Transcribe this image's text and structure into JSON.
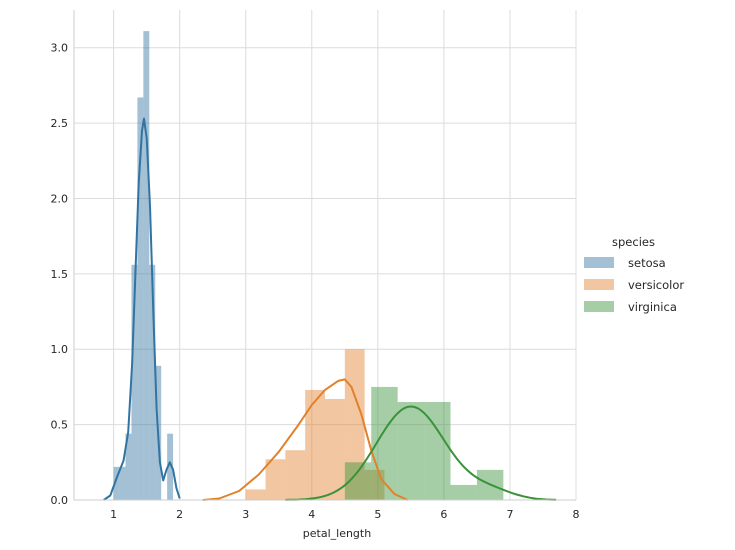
{
  "chart_data": {
    "type": "histogram-kde",
    "xlabel": "petal_length",
    "ylabel": "",
    "xlim": [
      0.4,
      8.0
    ],
    "ylim": [
      0,
      3.25
    ],
    "x_ticks": [
      1,
      2,
      3,
      4,
      5,
      6,
      7,
      8
    ],
    "y_ticks": [
      0.0,
      0.5,
      1.0,
      1.5,
      2.0,
      2.5,
      3.0
    ],
    "x_tick_labels": [
      "1",
      "2",
      "3",
      "4",
      "5",
      "6",
      "7",
      "8"
    ],
    "y_tick_labels": [
      "0.0",
      "0.5",
      "1.0",
      "1.5",
      "2.0",
      "2.5",
      "3.0"
    ],
    "grid": true,
    "legend": {
      "title": "species",
      "placement": "right"
    },
    "series": [
      {
        "name": "setosa",
        "color": "#3274a1",
        "fill_color": "#a3c2dc",
        "histogram": [
          {
            "x0": 1.0,
            "x1": 1.09,
            "value": 0.22
          },
          {
            "x0": 1.09,
            "x1": 1.18,
            "value": 0.22
          },
          {
            "x0": 1.18,
            "x1": 1.27,
            "value": 0.44
          },
          {
            "x0": 1.27,
            "x1": 1.36,
            "value": 1.56
          },
          {
            "x0": 1.36,
            "x1": 1.45,
            "value": 2.67
          },
          {
            "x0": 1.45,
            "x1": 1.54,
            "value": 3.11
          },
          {
            "x0": 1.54,
            "x1": 1.63,
            "value": 1.56
          },
          {
            "x0": 1.63,
            "x1": 1.72,
            "value": 0.89
          },
          {
            "x0": 1.72,
            "x1": 1.81,
            "value": 0.0
          },
          {
            "x0": 1.81,
            "x1": 1.9,
            "value": 0.44
          }
        ],
        "kde": [
          [
            0.85,
            0.0
          ],
          [
            0.95,
            0.03
          ],
          [
            1.05,
            0.15
          ],
          [
            1.15,
            0.26
          ],
          [
            1.22,
            0.45
          ],
          [
            1.28,
            0.9
          ],
          [
            1.33,
            1.5
          ],
          [
            1.38,
            2.1
          ],
          [
            1.43,
            2.45
          ],
          [
            1.46,
            2.53
          ],
          [
            1.5,
            2.4
          ],
          [
            1.55,
            1.95
          ],
          [
            1.6,
            1.25
          ],
          [
            1.65,
            0.6
          ],
          [
            1.7,
            0.25
          ],
          [
            1.75,
            0.13
          ],
          [
            1.8,
            0.2
          ],
          [
            1.85,
            0.25
          ],
          [
            1.9,
            0.2
          ],
          [
            1.95,
            0.08
          ],
          [
            2.0,
            0.01
          ]
        ]
      },
      {
        "name": "versicolor",
        "color": "#e1812c",
        "fill_color": "#f8c39c",
        "histogram": [
          {
            "x0": 3.0,
            "x1": 3.3,
            "value": 0.07
          },
          {
            "x0": 3.3,
            "x1": 3.6,
            "value": 0.27
          },
          {
            "x0": 3.6,
            "x1": 3.9,
            "value": 0.33
          },
          {
            "x0": 3.9,
            "x1": 4.2,
            "value": 0.73
          },
          {
            "x0": 4.2,
            "x1": 4.5,
            "value": 0.67
          },
          {
            "x0": 4.5,
            "x1": 4.8,
            "value": 1.0
          },
          {
            "x0": 4.8,
            "x1": 5.1,
            "value": 0.2
          }
        ],
        "kde": [
          [
            2.35,
            0.0
          ],
          [
            2.6,
            0.01
          ],
          [
            2.9,
            0.06
          ],
          [
            3.2,
            0.17
          ],
          [
            3.5,
            0.32
          ],
          [
            3.8,
            0.5
          ],
          [
            4.0,
            0.63
          ],
          [
            4.2,
            0.73
          ],
          [
            4.4,
            0.79
          ],
          [
            4.5,
            0.8
          ],
          [
            4.6,
            0.75
          ],
          [
            4.75,
            0.57
          ],
          [
            4.9,
            0.33
          ],
          [
            5.05,
            0.14
          ],
          [
            5.25,
            0.04
          ],
          [
            5.45,
            0.0
          ]
        ]
      },
      {
        "name": "virginica",
        "color": "#3a923a",
        "fill_color": "#a4d3a0",
        "histogram": [
          {
            "x0": 4.5,
            "x1": 4.9,
            "value": 0.25
          },
          {
            "x0": 4.9,
            "x1": 5.3,
            "value": 0.75
          },
          {
            "x0": 5.3,
            "x1": 5.7,
            "value": 0.65
          },
          {
            "x0": 5.7,
            "x1": 6.1,
            "value": 0.65
          },
          {
            "x0": 6.1,
            "x1": 6.5,
            "value": 0.1
          },
          {
            "x0": 6.5,
            "x1": 6.9,
            "value": 0.2
          }
        ]
      }
    ]
  }
}
